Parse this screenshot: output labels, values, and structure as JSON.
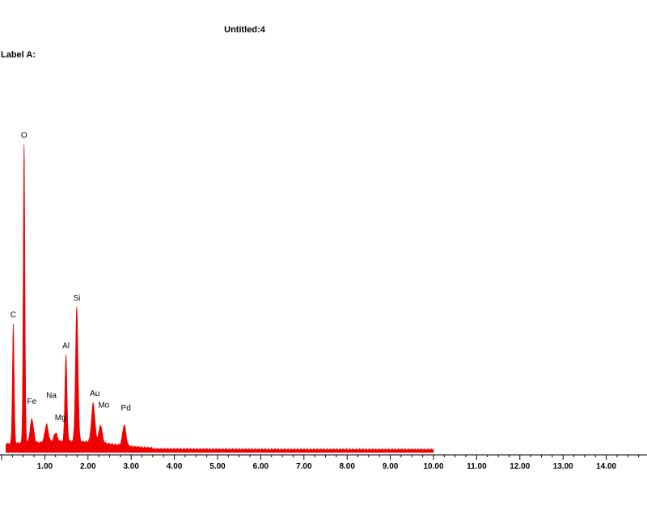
{
  "header": {
    "title": "Untitled:4",
    "label": "Label A:"
  },
  "colors": {
    "spectrum": "#ee0000",
    "axis": "#000000",
    "background": "#ffffff"
  },
  "chart_data": {
    "type": "area",
    "title": "Untitled:4",
    "subtitle": "Label A:",
    "xlabel": "",
    "ylabel": "",
    "xlim": [
      0,
      14.0
    ],
    "ylim": [
      0,
      1.0
    ],
    "grid": false,
    "x_ticks": [
      "1.00",
      "2.00",
      "3.00",
      "4.00",
      "5.00",
      "6.00",
      "7.00",
      "8.00",
      "9.00",
      "10.00",
      "11.00",
      "12.00",
      "13.00",
      "14.00"
    ],
    "peaks": [
      {
        "label": "C",
        "x": 0.27,
        "y": 0.4
      },
      {
        "label": "O",
        "x": 0.52,
        "y": 1.0
      },
      {
        "label": "Fe",
        "x": 0.7,
        "y": 0.08
      },
      {
        "label": "Na",
        "x": 1.04,
        "y": 0.06
      },
      {
        "label": "Mg",
        "x": 1.25,
        "y": 0.03
      },
      {
        "label": "Al",
        "x": 1.49,
        "y": 0.29
      },
      {
        "label": "Si",
        "x": 1.74,
        "y": 0.45
      },
      {
        "label": "Au",
        "x": 2.12,
        "y": 0.13
      },
      {
        "label": "Mo",
        "x": 2.29,
        "y": 0.06
      },
      {
        "label": "Pd",
        "x": 2.84,
        "y": 0.07
      }
    ],
    "spectrum_end": 10.0
  }
}
